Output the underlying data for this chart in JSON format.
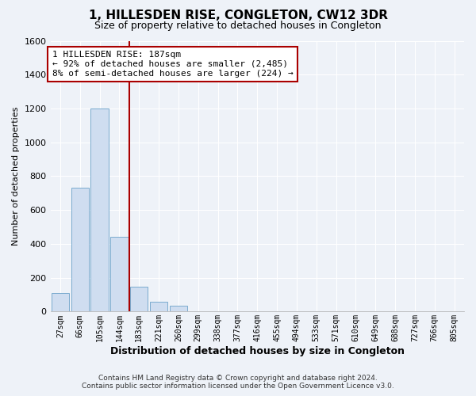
{
  "title": "1, HILLESDEN RISE, CONGLETON, CW12 3DR",
  "subtitle": "Size of property relative to detached houses in Congleton",
  "xlabel": "Distribution of detached houses by size in Congleton",
  "ylabel": "Number of detached properties",
  "bar_labels": [
    "27sqm",
    "66sqm",
    "105sqm",
    "144sqm",
    "183sqm",
    "221sqm",
    "260sqm",
    "299sqm",
    "338sqm",
    "377sqm",
    "416sqm",
    "455sqm",
    "494sqm",
    "533sqm",
    "571sqm",
    "610sqm",
    "649sqm",
    "688sqm",
    "727sqm",
    "766sqm",
    "805sqm"
  ],
  "bar_values": [
    110,
    730,
    1200,
    440,
    145,
    60,
    35,
    0,
    0,
    0,
    0,
    0,
    0,
    0,
    0,
    0,
    0,
    0,
    0,
    0,
    0
  ],
  "bar_color": "#cfddf0",
  "bar_edge_color": "#7aabce",
  "ylim": [
    0,
    1600
  ],
  "yticks": [
    0,
    200,
    400,
    600,
    800,
    1000,
    1200,
    1400,
    1600
  ],
  "vline_color": "#aa0000",
  "annotation_text": "1 HILLESDEN RISE: 187sqm\n← 92% of detached houses are smaller (2,485)\n8% of semi-detached houses are larger (224) →",
  "annotation_box_color": "#ffffff",
  "annotation_box_edge": "#aa0000",
  "footer_line1": "Contains HM Land Registry data © Crown copyright and database right 2024.",
  "footer_line2": "Contains public sector information licensed under the Open Government Licence v3.0.",
  "background_color": "#eef2f8",
  "plot_bg_color": "#eef2f8",
  "grid_color": "#ffffff"
}
